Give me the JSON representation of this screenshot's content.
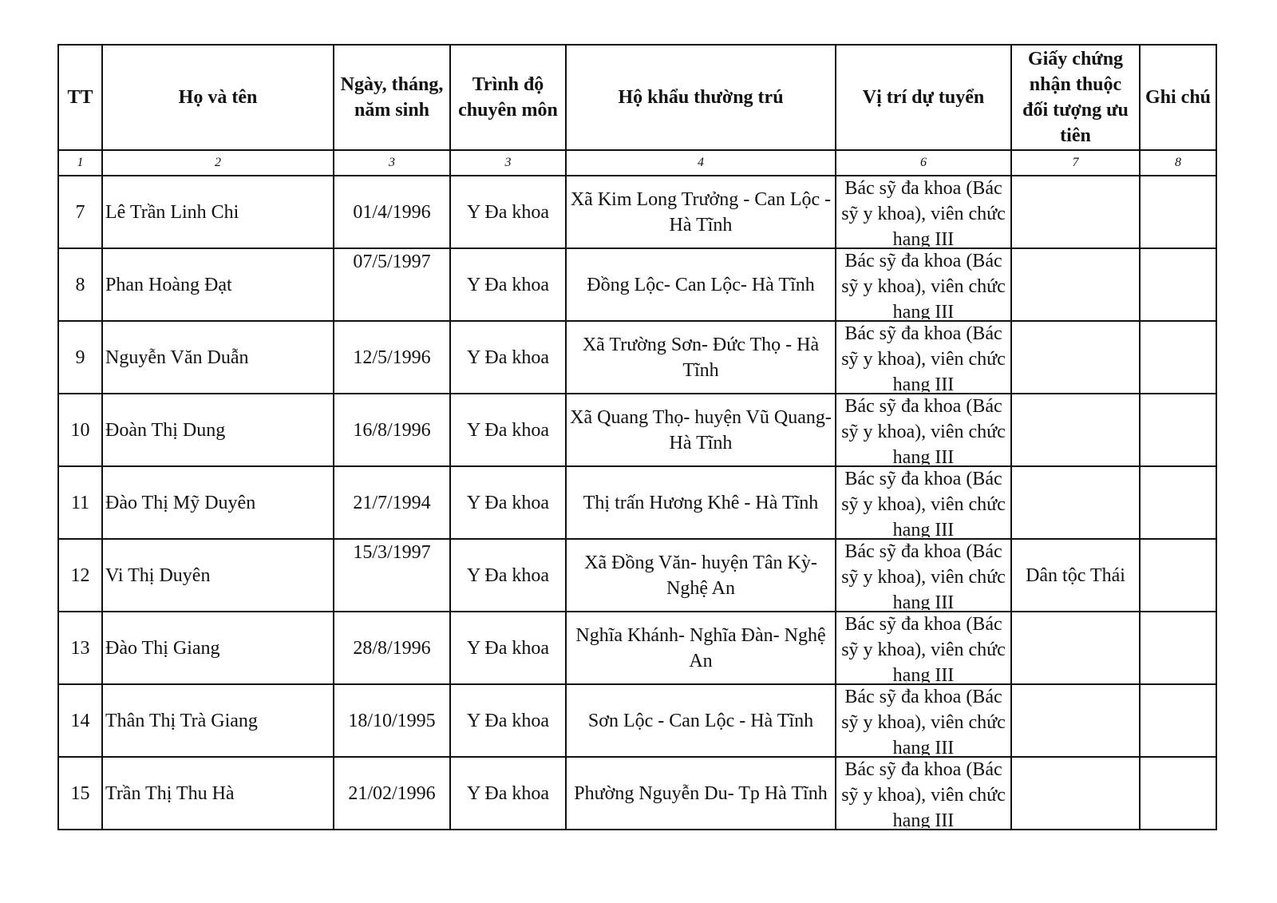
{
  "headers": [
    "TT",
    "Họ và tên",
    "Ngày, tháng, năm sinh",
    "Trình độ chuyên môn",
    "Hộ khẩu thường trú",
    "Vị trí dự tuyển",
    "Giấy chứng nhận thuộc đối tượng ưu tiên",
    "Ghi chú"
  ],
  "column_numbers": [
    "1",
    "2",
    "3",
    "3",
    "4",
    "6",
    "7",
    "8"
  ],
  "rows": [
    {
      "tt": "7",
      "name": "Lê Trần Linh Chi",
      "dob": "01/4/1996",
      "qual": "Y Đa khoa",
      "address": "Xã Kim Long Trưởng - Can Lộc - Hà Tĩnh",
      "position": "Bác sỹ đa khoa (Bác sỹ y khoa), viên chức hạng III",
      "priority": "",
      "note": ""
    },
    {
      "tt": "8",
      "name": "Phan Hoàng Đạt",
      "dob": "07/5/1997",
      "qual": "Y Đa khoa",
      "address": "Đồng Lộc- Can Lộc- Hà Tĩnh",
      "position": "Bác sỹ đa khoa (Bác sỹ y khoa), viên chức hạng III",
      "priority": "",
      "note": ""
    },
    {
      "tt": "9",
      "name": "Nguyễn Văn Duẫn",
      "dob": "12/5/1996",
      "qual": "Y Đa khoa",
      "address": "Xã Trường Sơn- Đức Thọ - Hà Tĩnh",
      "position": "Bác sỹ đa khoa (Bác sỹ y khoa), viên chức hạng III",
      "priority": "",
      "note": ""
    },
    {
      "tt": "10",
      "name": "Đoàn Thị Dung",
      "dob": "16/8/1996",
      "qual": "Y Đa khoa",
      "address": "Xã Quang Thọ- huyện Vũ Quang- Hà Tĩnh",
      "position": "Bác sỹ đa khoa (Bác sỹ y khoa), viên chức hạng III",
      "priority": "",
      "note": ""
    },
    {
      "tt": "11",
      "name": "Đào Thị Mỹ Duyên",
      "dob": "21/7/1994",
      "qual": "Y Đa khoa",
      "address": "Thị trấn Hương Khê - Hà Tĩnh",
      "position": "Bác sỹ đa khoa (Bác sỹ y khoa), viên chức hạng III",
      "priority": "",
      "note": ""
    },
    {
      "tt": "12",
      "name": "Vi Thị Duyên",
      "dob": "15/3/1997",
      "qual": "Y Đa khoa",
      "address": "Xã Đồng Văn- huyện Tân Kỳ- Nghệ An",
      "position": "Bác sỹ đa khoa (Bác sỹ y khoa), viên chức hạng III",
      "priority": "Dân tộc Thái",
      "note": ""
    },
    {
      "tt": "13",
      "name": "Đào Thị Giang",
      "dob": "28/8/1996",
      "qual": "Y Đa khoa",
      "address": "Nghĩa Khánh- Nghĩa Đàn- Nghệ An",
      "position": "Bác sỹ đa khoa (Bác sỹ y khoa), viên chức hạng III",
      "priority": "",
      "note": ""
    },
    {
      "tt": "14",
      "name": "Thân Thị Trà Giang",
      "dob": "18/10/1995",
      "qual": "Y Đa khoa",
      "address": "Sơn Lộc - Can Lộc - Hà Tĩnh",
      "position": "Bác sỹ đa khoa (Bác sỹ y khoa), viên chức hạng III",
      "priority": "",
      "note": ""
    },
    {
      "tt": "15",
      "name": "Trần Thị Thu Hà",
      "dob": "21/02/1996",
      "qual": "Y Đa khoa",
      "address": "Phường Nguyễn Du- Tp Hà Tĩnh",
      "position": "Bác sỹ đa khoa (Bác sỹ y khoa), viên chức hạng III",
      "priority": "",
      "note": ""
    }
  ]
}
